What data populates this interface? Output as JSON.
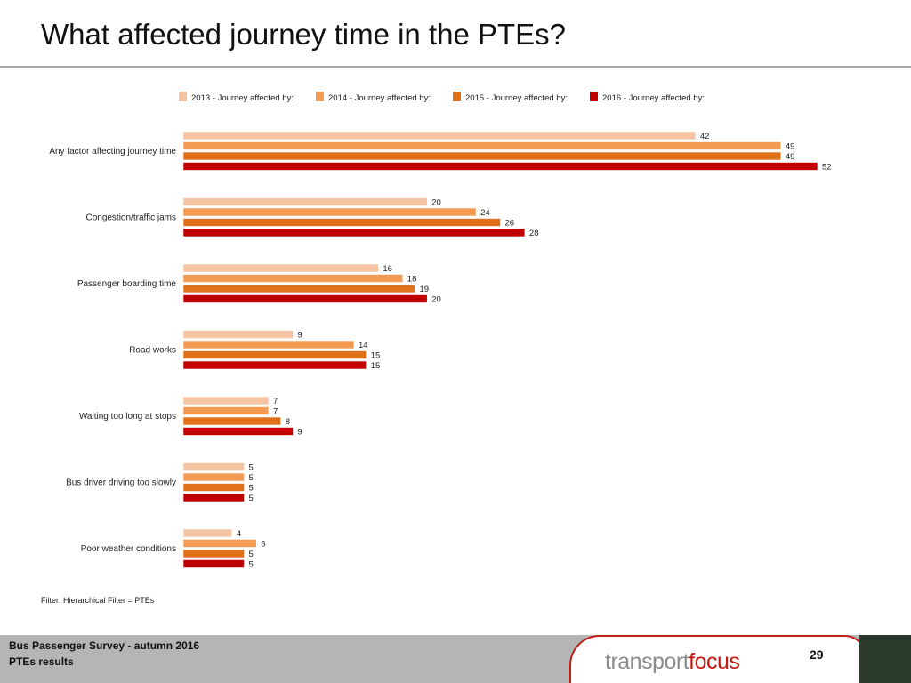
{
  "page": {
    "title": "What affected journey time in the PTEs?",
    "filter_note": "Filter: Hierarchical Filter = PTEs",
    "footer_line1": "Bus Passenger Survey - autumn 2016",
    "footer_line2": "PTEs results",
    "page_number": "29",
    "brand_part1": "transport",
    "brand_part2": "focus"
  },
  "colors": {
    "2013": "#f5c5a3",
    "2014": "#f39a53",
    "2015": "#e0701a",
    "2016": "#c00000",
    "brand_red": "#c5180f"
  },
  "chart_data": {
    "type": "bar",
    "orientation": "horizontal",
    "categories": [
      "Any factor affecting journey time",
      "Congestion/traffic jams",
      "Passenger boarding time",
      "Road works",
      "Waiting too long at stops",
      "Bus driver driving too slowly",
      "Poor weather conditions"
    ],
    "series": [
      {
        "name": "2013 - Journey affected by:",
        "values": [
          42,
          20,
          16,
          9,
          7,
          5,
          4
        ]
      },
      {
        "name": "2014 - Journey affected by:",
        "values": [
          49,
          24,
          18,
          14,
          7,
          5,
          6
        ]
      },
      {
        "name": "2015 - Journey affected by:",
        "values": [
          49,
          26,
          19,
          15,
          8,
          5,
          5
        ]
      },
      {
        "name": "2016 - Journey affected by:",
        "values": [
          52,
          28,
          20,
          15,
          9,
          5,
          5
        ]
      }
    ],
    "legend_position": "top",
    "data_labels": true,
    "grid": false
  }
}
